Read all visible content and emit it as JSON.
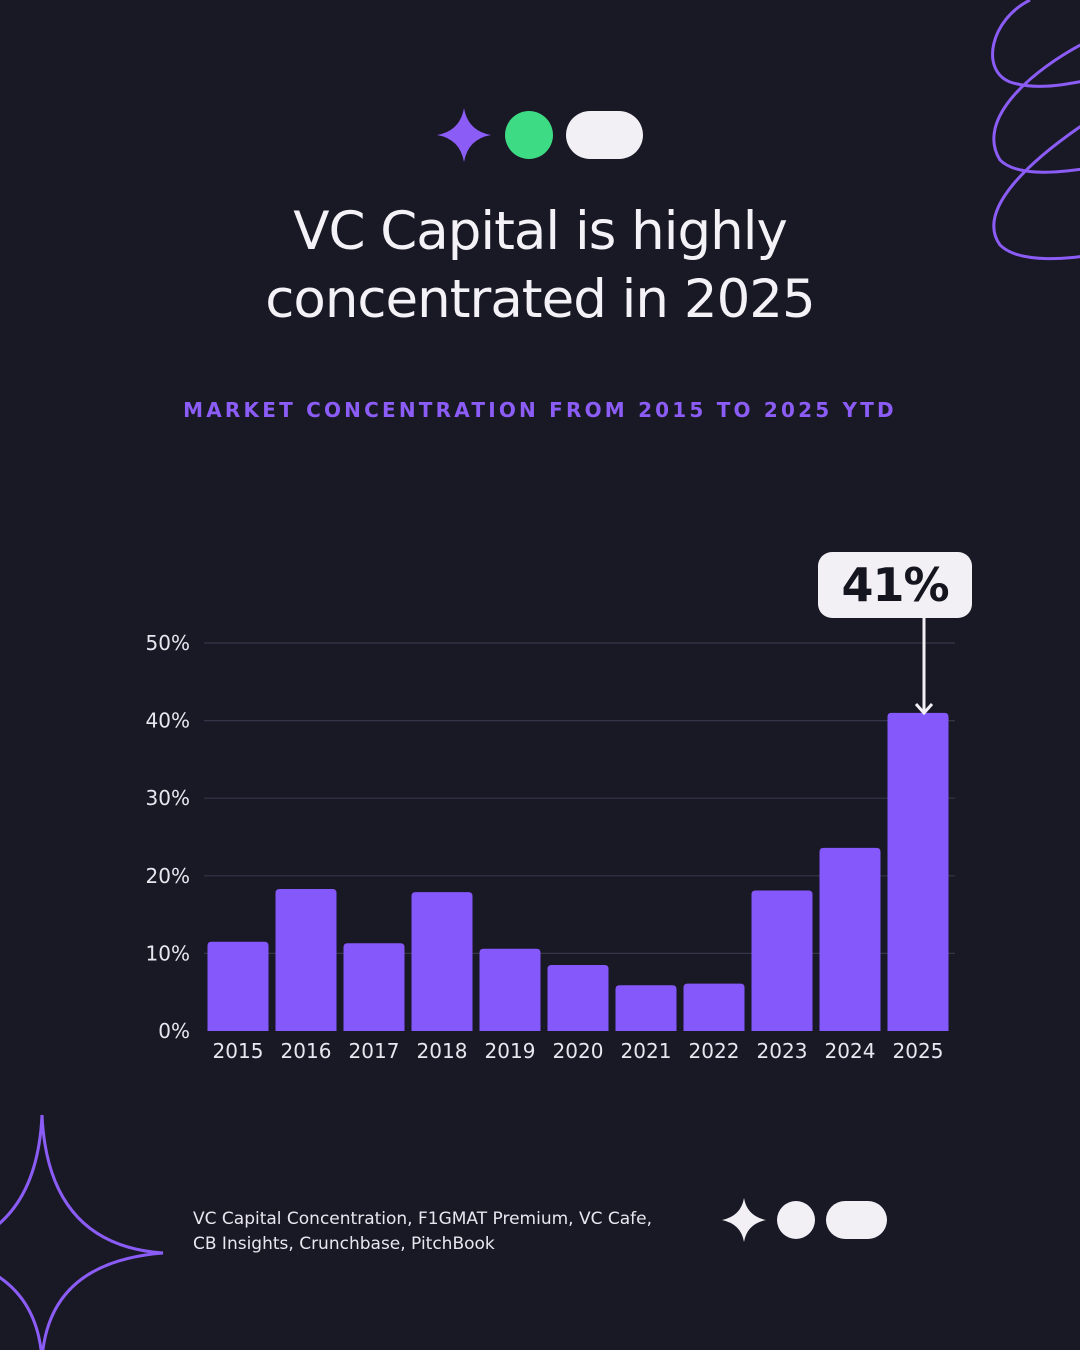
{
  "title_line1": "VC Capital is highly",
  "title_line2": "concentrated in 2025",
  "subtitle": "MARKET CONCENTRATION FROM 2015 TO 2025 YTD",
  "callout": "41%",
  "source_line1": "VC Capital Concentration, F1GMAT Premium, VC Cafe,",
  "source_line2": "CB Insights, Crunchbase, PitchBook",
  "colors": {
    "background": "#191925",
    "bar": "#8558fb",
    "accent_purple": "#8b5cf6",
    "accent_green": "#3ddc84",
    "light": "#f2f0f5"
  },
  "icons": [
    "sparkle-icon",
    "green-dot-icon",
    "white-pill-icon",
    "swirl-decoration-icon",
    "four-point-star-icon"
  ],
  "chart_data": {
    "type": "bar",
    "title": "",
    "xlabel": "",
    "ylabel": "",
    "categories": [
      "2015",
      "2016",
      "2017",
      "2018",
      "2019",
      "2020",
      "2021",
      "2022",
      "2023",
      "2024",
      "2025"
    ],
    "values": [
      11.5,
      18.3,
      11.3,
      17.9,
      10.6,
      8.5,
      5.9,
      6.1,
      18.1,
      23.6,
      41
    ],
    "ylim": [
      0,
      50
    ],
    "yticks": [
      "0%",
      "10%",
      "20%",
      "30%",
      "40%",
      "50%"
    ],
    "ytick_values": [
      0,
      10,
      20,
      30,
      40,
      50
    ],
    "highlight": {
      "category": "2025",
      "label": "41%"
    },
    "grid": true,
    "legend": "none"
  }
}
